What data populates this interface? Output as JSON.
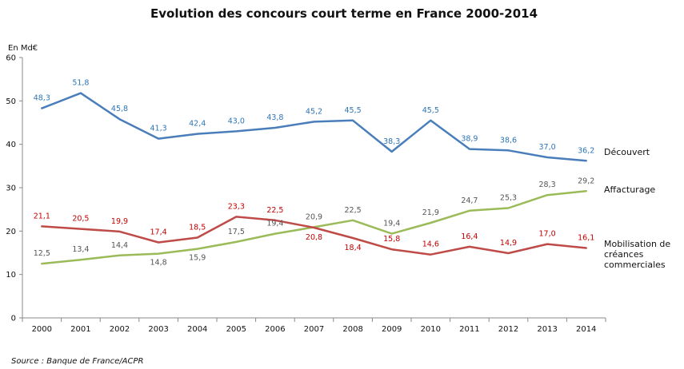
{
  "chart_data": {
    "type": "line",
    "title": "Evolution des concours court terme en France 2000-2014",
    "ylabel": "En Md€",
    "xlabel": "",
    "ylim": [
      0,
      60
    ],
    "yticks": [
      "0",
      "10",
      "20",
      "30",
      "40",
      "50",
      "60"
    ],
    "grid": false,
    "legend_placement": "right, inline at line ends",
    "categories": [
      "2000",
      "2001",
      "2002",
      "2003",
      "2004",
      "2005",
      "2006",
      "2007",
      "2008",
      "2009",
      "2010",
      "2011",
      "2012",
      "2013",
      "2014"
    ],
    "series": [
      {
        "name": "Découvert",
        "color": "#4a7ebb",
        "values": [
          48.3,
          51.8,
          45.8,
          41.3,
          42.4,
          43.0,
          43.8,
          45.2,
          45.5,
          38.3,
          45.5,
          38.9,
          38.6,
          37.0,
          36.2
        ],
        "labels": [
          "48,3",
          "51,8",
          "45,8",
          "41,3",
          "42,4",
          "43,0",
          "43,8",
          "45,2",
          "45,5",
          "38,3",
          "45,5",
          "38,9",
          "38,6",
          "37,0",
          "36,2"
        ],
        "label_color": "#2e75b6"
      },
      {
        "name": "Affacturage",
        "color": "#9bbb59",
        "values": [
          12.5,
          13.4,
          14.4,
          14.8,
          15.9,
          17.5,
          19.4,
          20.9,
          22.5,
          19.4,
          21.9,
          24.7,
          25.3,
          28.3,
          29.2
        ],
        "labels": [
          "12,5",
          "13,4",
          "14,4",
          "14,8",
          "15,9",
          "17,5",
          "19,4",
          "20,9",
          "22,5",
          "19,4",
          "21,9",
          "24,7",
          "25,3",
          "28,3",
          "29,2"
        ],
        "label_color": "#555555"
      },
      {
        "name": "Mobilisation de créances commerciales",
        "name_lines": [
          "Mobilisation de",
          "créances",
          "commerciales"
        ],
        "color": "#be4b48",
        "values": [
          21.1,
          20.5,
          19.9,
          17.4,
          18.5,
          23.3,
          22.5,
          20.8,
          18.4,
          15.8,
          14.6,
          16.4,
          14.9,
          17.0,
          16.1
        ],
        "labels": [
          "21,1",
          "20,5",
          "19,9",
          "17,4",
          "18,5",
          "23,3",
          "22,5",
          "20,8",
          "18,4",
          "15,8",
          "14,6",
          "16,4",
          "14,9",
          "17,0",
          "16,1"
        ],
        "label_color": "#c00000"
      }
    ],
    "source": "Source : Banque de France/ACPR"
  }
}
